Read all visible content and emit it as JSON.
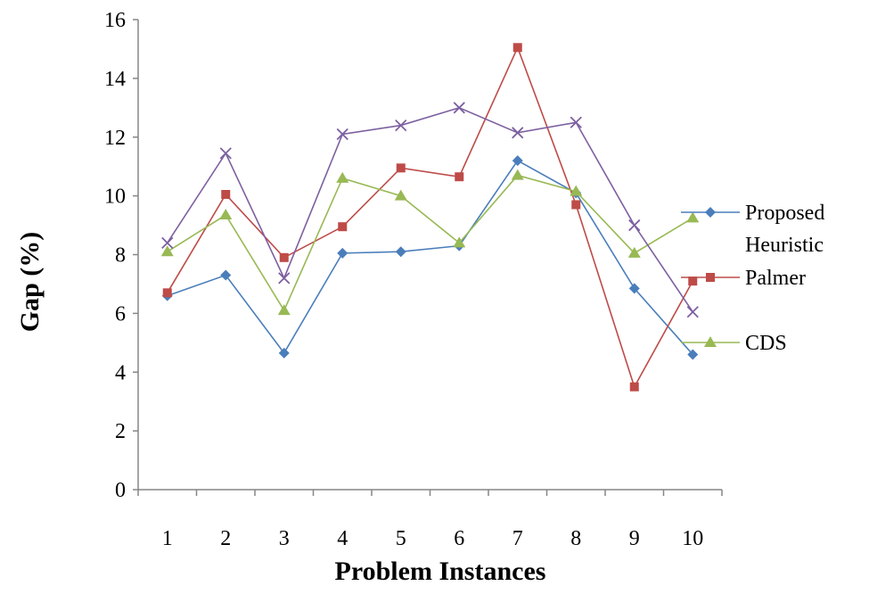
{
  "chart_data": {
    "type": "line",
    "title": "",
    "xlabel": "Problem Instances",
    "ylabel": "Gap (%)",
    "ylim": [
      0,
      16
    ],
    "yticks": [
      0,
      2,
      4,
      6,
      8,
      10,
      12,
      14,
      16
    ],
    "categories": [
      "1",
      "2",
      "3",
      "4",
      "5",
      "6",
      "7",
      "8",
      "9",
      "10"
    ],
    "grid": false,
    "legend_position": "right",
    "series": [
      {
        "name": "Proposed Heuristic",
        "legend_lines": [
          "Proposed",
          "Heuristic"
        ],
        "color": "#4a7ebb",
        "marker": "diamond",
        "values": [
          6.6,
          7.3,
          4.65,
          8.05,
          8.1,
          8.3,
          11.2,
          10.1,
          6.85,
          4.6
        ]
      },
      {
        "name": "Palmer",
        "legend_lines": [
          "Palmer"
        ],
        "color": "#be4b48",
        "marker": "square",
        "values": [
          6.7,
          10.05,
          7.9,
          8.95,
          10.95,
          10.65,
          15.05,
          9.7,
          3.5,
          7.1
        ]
      },
      {
        "name": "CDS",
        "legend_lines": [
          "CDS"
        ],
        "color": "#98b954",
        "marker": "triangle",
        "values": [
          8.1,
          9.35,
          6.1,
          10.6,
          10.0,
          8.4,
          10.7,
          10.15,
          8.05,
          9.25
        ]
      },
      {
        "name": "",
        "legend_lines": [],
        "color": "#7d60a0",
        "marker": "x",
        "values": [
          8.4,
          11.45,
          7.2,
          12.1,
          12.4,
          13.0,
          12.15,
          12.5,
          9.0,
          6.05
        ]
      }
    ]
  }
}
